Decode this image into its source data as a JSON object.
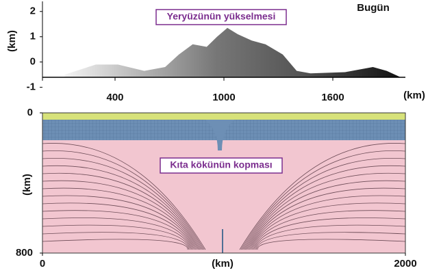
{
  "chart_data": [
    {
      "type": "area",
      "annotation": "Yeryüzünün yükselmesi",
      "label": "Bugün",
      "x_label": "(km)",
      "y_label": "(km)",
      "x": [
        122,
        294,
        416,
        561,
        676,
        752,
        828,
        905,
        962,
        1019,
        1076,
        1153,
        1229,
        1324,
        1401,
        1477,
        1668,
        1821,
        1897,
        1973
      ],
      "values": [
        -0.5,
        -0.1,
        -0.1,
        -0.35,
        -0.2,
        0.3,
        0.7,
        0.6,
        1.0,
        1.35,
        1.1,
        0.85,
        0.7,
        0.3,
        -0.35,
        -0.45,
        -0.4,
        -0.2,
        -0.35,
        -0.6
      ],
      "xlim": [
        0,
        2000
      ],
      "ylim": [
        -1.2,
        2.4
      ],
      "xticks": [
        400,
        1000,
        1600
      ],
      "yticks": [
        2,
        1,
        0,
        -1
      ],
      "tick_color": "#c0272d"
    },
    {
      "type": "section",
      "annotation": "Kıta kökünün kopması",
      "x_label": "(km)",
      "y_label": "(km)",
      "xlim": [
        0,
        2000
      ],
      "ylim": [
        800,
        0
      ],
      "xticks": [
        0,
        2000
      ],
      "yticks": [
        0,
        800
      ]
    }
  ]
}
